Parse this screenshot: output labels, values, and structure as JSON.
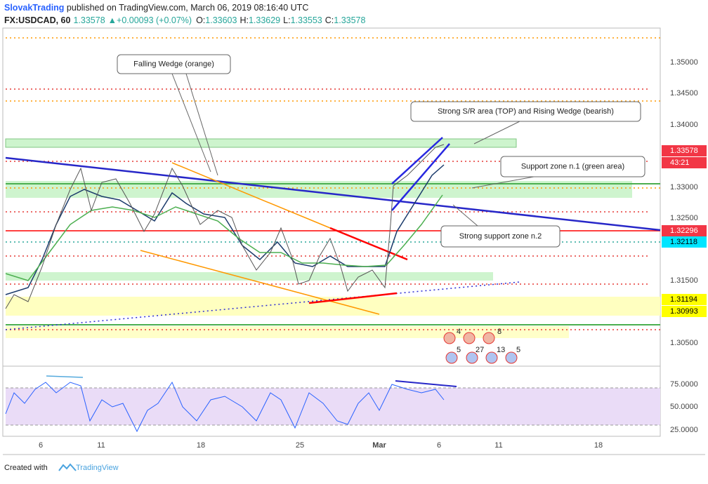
{
  "header": {
    "author": "SlovakTrading",
    "published": " published on TradingView.com, March 06, 2019 08:16:40 UTC",
    "symbol": "FX:USDCAD, 60",
    "last": "1.33578",
    "change": "+0.00093 (+0.07%)",
    "ohlc": [
      {
        "label": "O:",
        "value": "1.33603"
      },
      {
        "label": "H:",
        "value": "1.33629"
      },
      {
        "label": "L:",
        "value": "1.33553"
      },
      {
        "label": "C:",
        "value": "1.33578"
      }
    ]
  },
  "price_axis": [
    "1.35000",
    "1.34500",
    "1.34000",
    "1.33578",
    "43:21",
    "1.33000",
    "1.32500",
    "1.32296",
    "1.32118",
    "1.31500",
    "1.31194",
    "1.30993",
    "1.30500"
  ],
  "rsi_axis": [
    "75.0000",
    "50.0000",
    "25.0000"
  ],
  "date_axis": [
    "6",
    "11",
    "18",
    "25",
    "Mar",
    "6",
    "11",
    "18"
  ],
  "annotations": [
    "Falling Wedge (orange)",
    "Strong S/R area (TOP) and Rising Wedge (bearish)",
    "Support zone n.1 (green area)",
    "Strong support zone n.2"
  ],
  "icon_counts": [
    "4",
    "8",
    "5",
    "27",
    "13",
    "5"
  ],
  "footer": {
    "created": "Created with",
    "brand": "TradingView"
  }
}
